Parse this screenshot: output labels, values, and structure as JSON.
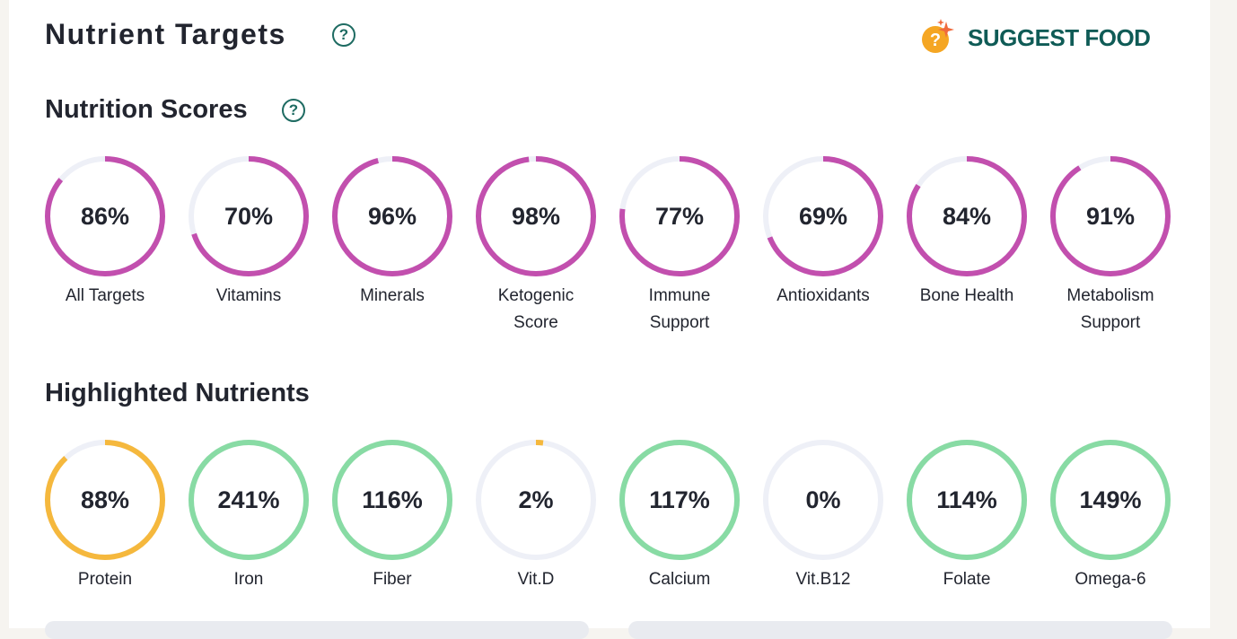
{
  "header": {
    "title": "Nutrient Targets",
    "help_icon": "?",
    "suggest_label": "SUGGEST FOOD"
  },
  "scores": {
    "title": "Nutrition Scores",
    "help_icon": "?",
    "color": "#c24fae",
    "items": [
      {
        "label": "All Targets",
        "value": 86,
        "text": "86%"
      },
      {
        "label": "Vitamins",
        "value": 70,
        "text": "70%"
      },
      {
        "label": "Minerals",
        "value": 96,
        "text": "96%"
      },
      {
        "label": "Ketogenic Score",
        "value": 98,
        "text": "98%"
      },
      {
        "label": "Immune Support",
        "value": 77,
        "text": "77%"
      },
      {
        "label": "Antioxidants",
        "value": 69,
        "text": "69%"
      },
      {
        "label": "Bone Health",
        "value": 84,
        "text": "84%"
      },
      {
        "label": "Metabolism Support",
        "value": 91,
        "text": "91%"
      }
    ]
  },
  "highlighted": {
    "title": "Highlighted Nutrients",
    "items": [
      {
        "label": "Protein",
        "value": 88,
        "text": "88%",
        "color": "#f5b83d"
      },
      {
        "label": "Iron",
        "value": 241,
        "text": "241%",
        "color": "#88dba4"
      },
      {
        "label": "Fiber",
        "value": 116,
        "text": "116%",
        "color": "#88dba4"
      },
      {
        "label": "Vit.D",
        "value": 2,
        "text": "2%",
        "color": "#f5b83d"
      },
      {
        "label": "Calcium",
        "value": 117,
        "text": "117%",
        "color": "#88dba4"
      },
      {
        "label": "Vit.B12",
        "value": 0,
        "text": "0%",
        "color": "#88dba4"
      },
      {
        "label": "Folate",
        "value": 114,
        "text": "114%",
        "color": "#88dba4"
      },
      {
        "label": "Omega-6",
        "value": 149,
        "text": "149%",
        "color": "#88dba4"
      }
    ]
  },
  "track_color": "#eef0f7"
}
